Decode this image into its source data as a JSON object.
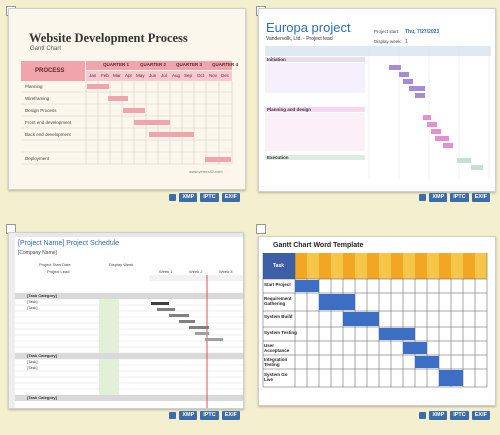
{
  "badges": [
    "XMP",
    "IPTC",
    "EXIF"
  ],
  "thumb1": {
    "title": "Website Development Process",
    "subtitle": "Gantt Chart",
    "process_header": "PROCESS",
    "quarters": [
      "QUARTER 1",
      "QUARTER 2",
      "QUARTER 3",
      "QUARTER 4"
    ],
    "months": [
      "Jan",
      "Feb",
      "Mar",
      "Apr",
      "May",
      "Jun",
      "Jul",
      "Aug",
      "Sep",
      "Oct",
      "Nov",
      "Dec"
    ],
    "rows": [
      "Planning",
      "Wireframing",
      "Design Process",
      "Front end development",
      "Back end development",
      "Deployment"
    ],
    "footer": "www.vertex42.com",
    "accent": "#f2a4ad"
  },
  "thumb2": {
    "title": "Europa project",
    "company": "Vandervolk, Ltd. - Project lead",
    "start_label": "Project start:",
    "start_value": "Thu, 7/27/2023",
    "week_label": "Display week:",
    "week_value": "1",
    "section_labels": [
      "Initiation",
      "Planning and design",
      "Execution"
    ],
    "colors": [
      "#a88bd6",
      "#e48fd0",
      "#c8dfd0"
    ]
  },
  "thumb3": {
    "title": "[Project Name] Project Schedule",
    "company": "[Company Name]",
    "start_label": "Project Start Date",
    "lead_label": "Project Lead",
    "display_week": "Display Week",
    "weeks": [
      "Week 1",
      "Week 2",
      "Week 3"
    ],
    "category": "[Task Category]",
    "task": "[Task]"
  },
  "thumb4": {
    "title": "Gantt Chart Word Template",
    "task_header": "Task",
    "tasks": [
      "Start Project",
      "Requirement Gathering",
      "System Build",
      "System Testing",
      "User Acceptance",
      "Integration Testing",
      "System Go Live"
    ]
  }
}
